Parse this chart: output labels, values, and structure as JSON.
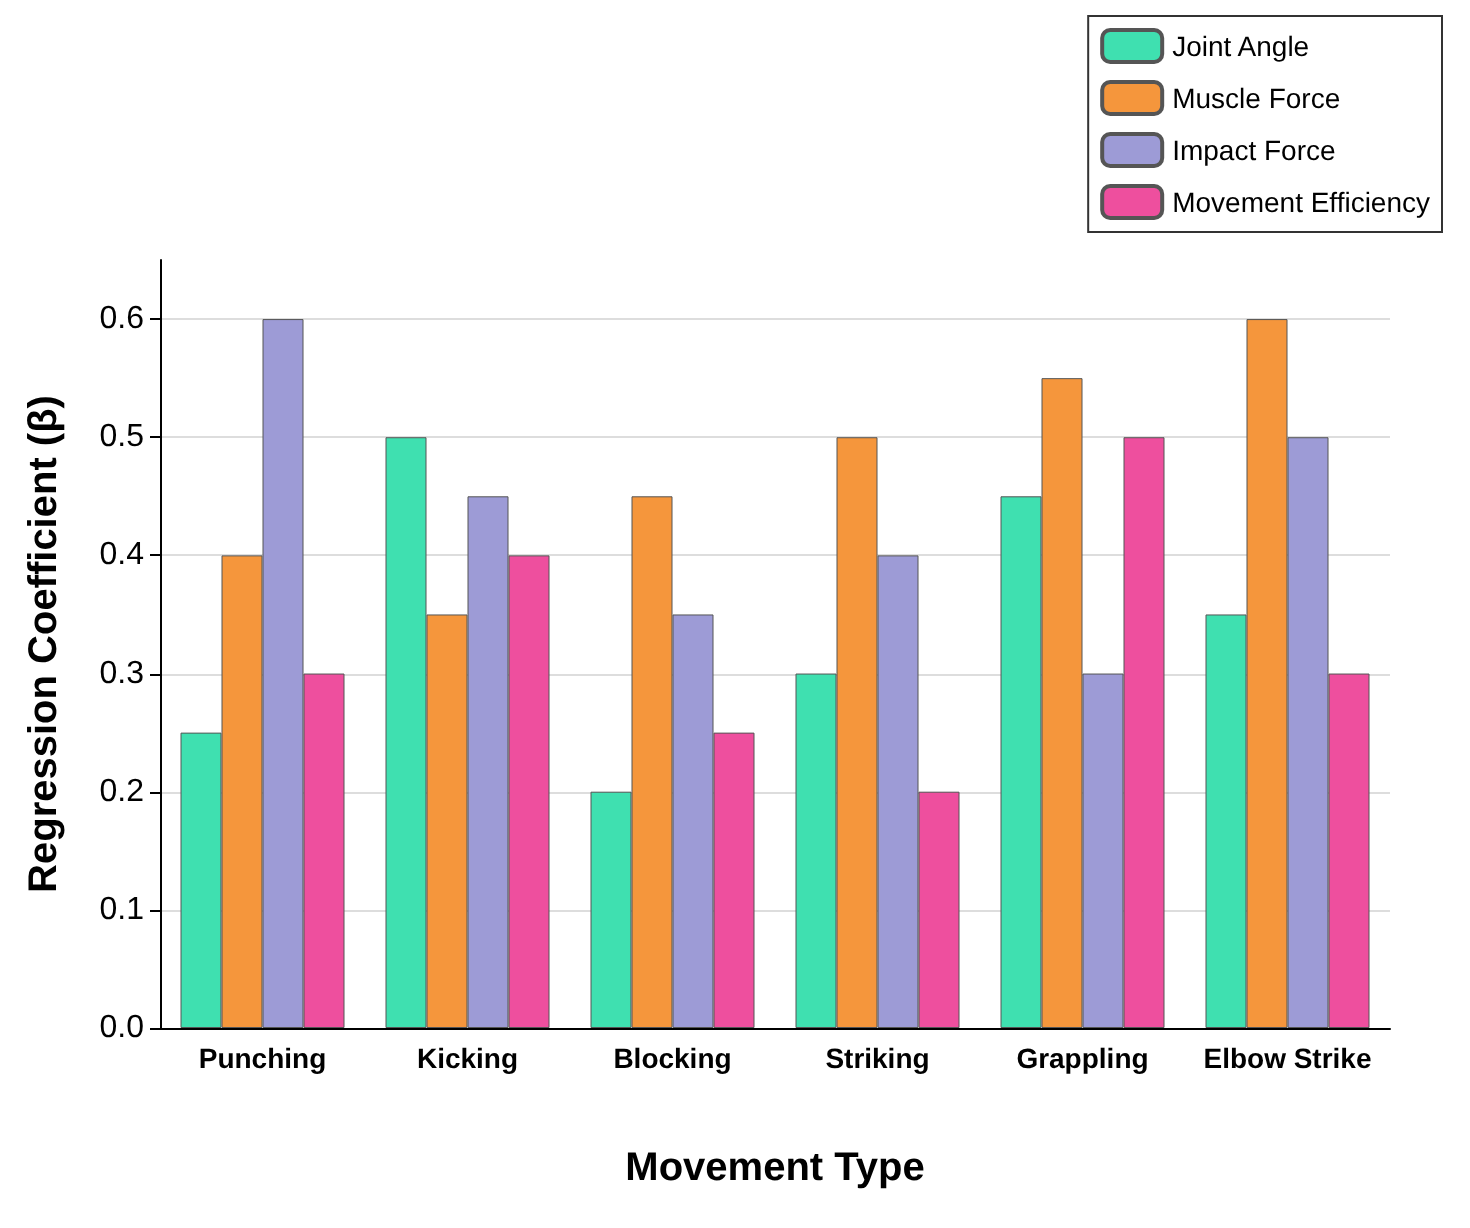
{
  "chart_data": {
    "type": "bar",
    "xlabel": "Movement Type",
    "ylabel": "Regression Coefficient (β)",
    "categories": [
      "Punching",
      "Kicking",
      "Blocking",
      "Striking",
      "Grappling",
      "Elbow Strike"
    ],
    "series": [
      {
        "name": "Joint Angle",
        "color": "#3fe0b0",
        "values": [
          0.25,
          0.5,
          0.2,
          0.3,
          0.45,
          0.35
        ]
      },
      {
        "name": "Muscle Force",
        "color": "#f5963c",
        "values": [
          0.4,
          0.35,
          0.45,
          0.5,
          0.55,
          0.6
        ]
      },
      {
        "name": "Impact Force",
        "color": "#9d9bd6",
        "values": [
          0.6,
          0.45,
          0.35,
          0.4,
          0.3,
          0.5
        ]
      },
      {
        "name": "Movement Efficiency",
        "color": "#ee4f9e",
        "values": [
          0.3,
          0.4,
          0.25,
          0.2,
          0.5,
          0.3
        ]
      }
    ],
    "ylim": [
      0,
      0.65
    ],
    "yticks": [
      {
        "value": 0,
        "label": "0.0"
      },
      {
        "value": 0.1,
        "label": "0.1"
      },
      {
        "value": 0.2,
        "label": "0.2"
      },
      {
        "value": 0.3,
        "label": "0.3"
      },
      {
        "value": 0.4,
        "label": "0.4"
      },
      {
        "value": 0.5,
        "label": "0.5"
      },
      {
        "value": 0.6,
        "label": "0.6"
      }
    ],
    "grid": "y",
    "legend": "top right"
  }
}
